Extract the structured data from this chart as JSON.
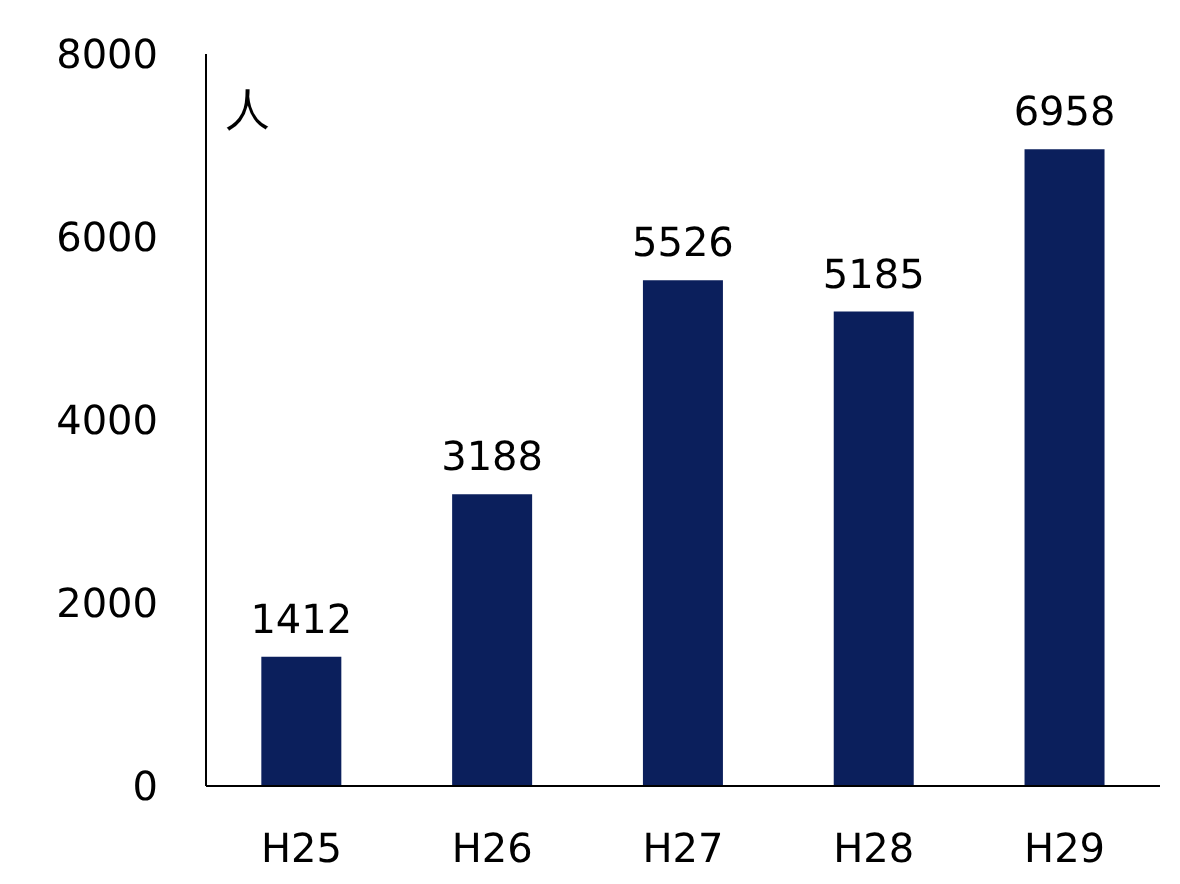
{
  "chart_data": {
    "type": "bar",
    "ylabel": "人",
    "categories": [
      "H25",
      "H26",
      "H27",
      "H28",
      "H29"
    ],
    "values": [
      1412,
      3188,
      5526,
      5185,
      6958
    ],
    "color": "#0b1f5c",
    "ylim": [
      0,
      8000
    ],
    "yticks": [
      0,
      2000,
      4000,
      6000,
      8000
    ],
    "data_labels": true,
    "grid": false,
    "legend": false
  }
}
